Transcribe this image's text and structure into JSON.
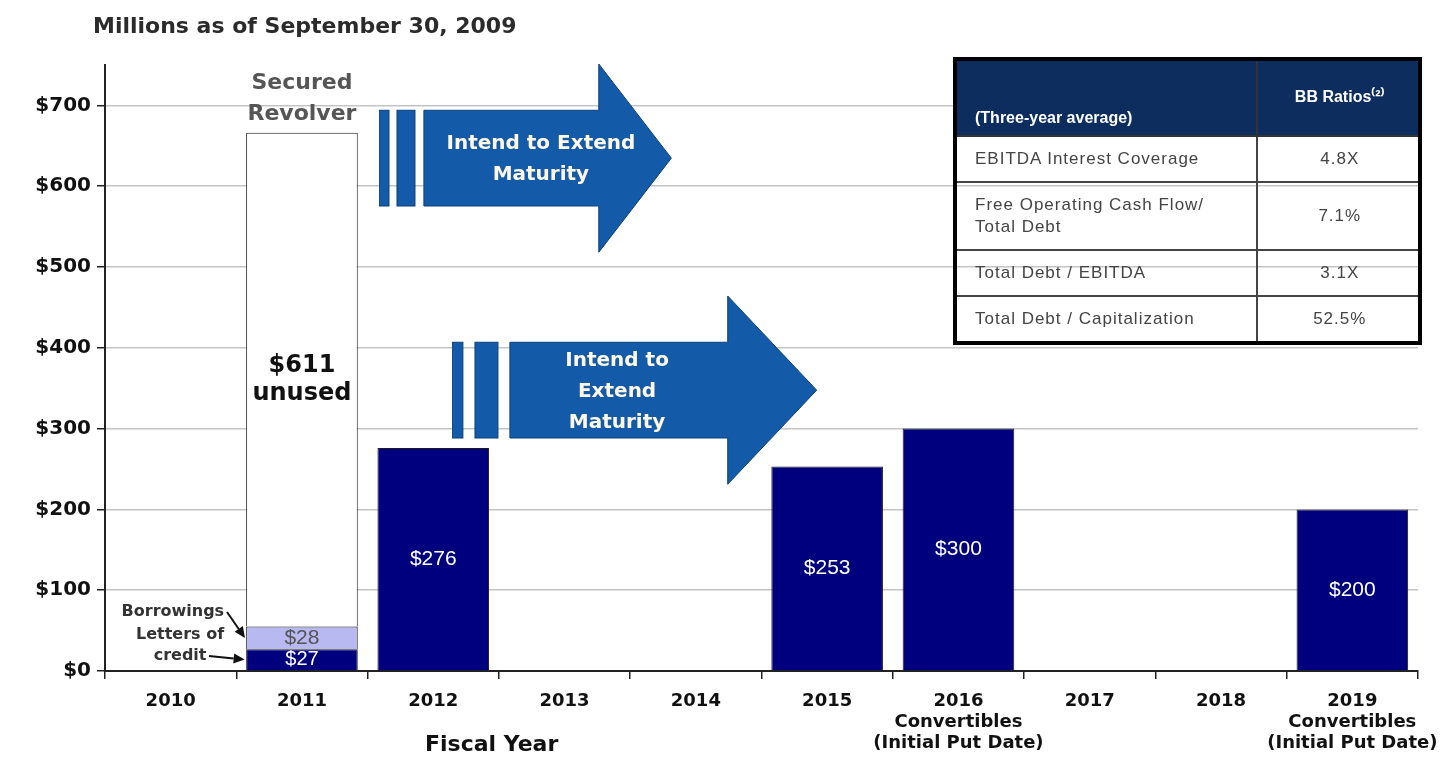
{
  "chart_data": [
    {
      "type": "bar",
      "title": "Millions as of September 30, 2009",
      "xlabel": "Fiscal Year",
      "categories": [
        "2010",
        "2011",
        "2012",
        "2013",
        "2014",
        "2015",
        "2016\nConvertibles\n(Initial Put Date)",
        "2017",
        "2018",
        "2019\nConvertibles\n(Initial Put Date)"
      ],
      "stacked": true,
      "series": [
        {
          "name": "Letters of credit",
          "color": "#00007f",
          "values": [
            null,
            27,
            null,
            null,
            null,
            null,
            null,
            null,
            null,
            null
          ],
          "value_labels": [
            null,
            "$27",
            null,
            null,
            null,
            null,
            null,
            null,
            null,
            null
          ]
        },
        {
          "name": "Borrowings",
          "color": "#b9b9f2",
          "values": [
            null,
            28,
            null,
            null,
            null,
            null,
            null,
            null,
            null,
            null
          ],
          "value_labels": [
            null,
            "$28",
            null,
            null,
            null,
            null,
            null,
            null,
            null,
            null
          ]
        },
        {
          "color": "#ffffff",
          "values": [
            null,
            611,
            null,
            null,
            null,
            null,
            null,
            null,
            null,
            null
          ],
          "value_labels": [
            null,
            "$611 unused",
            null,
            null,
            null,
            null,
            null,
            null,
            null,
            null
          ]
        },
        {
          "color": "#00007f",
          "values": [
            null,
            null,
            276,
            null,
            null,
            253,
            300,
            null,
            null,
            200
          ],
          "value_labels": [
            null,
            null,
            "$276",
            null,
            null,
            "$253",
            "$300",
            null,
            null,
            "$200"
          ]
        }
      ],
      "ylim": [
        0,
        750
      ],
      "yticks": [
        {
          "value": 0,
          "label": "$0"
        },
        {
          "value": 100,
          "label": "$100"
        },
        {
          "value": 200,
          "label": "$200"
        },
        {
          "value": 300,
          "label": "$300"
        },
        {
          "value": 400,
          "label": "$400"
        },
        {
          "value": 500,
          "label": "$500"
        },
        {
          "value": 600,
          "label": "$600"
        },
        {
          "value": 700,
          "label": "$700"
        }
      ],
      "grid": "y",
      "annotations": [
        {
          "text": "Secured Revolver",
          "x": "2011",
          "y": 666
        },
        "Intend to Extend Maturity",
        "Intend to Extend Maturity"
      ]
    },
    {
      "type": "other",
      "annotations": [
        "(Three-year average)",
        "BB Ratios⁽²⁾",
        "EBITDA Interest Coverage",
        "4.8X",
        "Free Operating Cash Flow/ Total Debt",
        "7.1%",
        "Total Debt / EBITDA",
        "3.1X",
        "Total Debt / Capitalization",
        "52.5%"
      ]
    }
  ]
}
